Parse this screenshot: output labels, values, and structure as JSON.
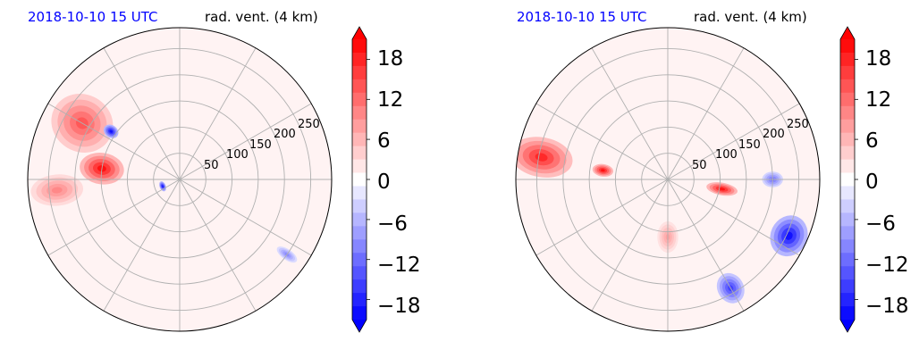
{
  "chart_data": [
    {
      "type": "heatmap",
      "projection": "polar",
      "title_left": "2018-10-10 15 UTC",
      "title_right": "rad. vent. (4 km)",
      "title_left_color": "#0000ff",
      "radial_ticks": [
        "50",
        "100",
        "150",
        "200",
        "250"
      ],
      "radial_values": [
        50,
        100,
        150,
        200,
        250
      ],
      "rmax": 290,
      "grid": true,
      "colorbar": {
        "ticks": [
          "18",
          "12",
          "6",
          "0",
          "−6",
          "−12",
          "−18"
        ],
        "tick_values": [
          18,
          12,
          6,
          0,
          -6,
          -12,
          -18
        ],
        "vmin": -21,
        "vmax": 21,
        "extend": "both",
        "cmap": "bwr",
        "levels": 21
      },
      "features": [
        {
          "sign": 1,
          "value": 20,
          "az": 278,
          "r": 150,
          "width": 30,
          "extent": 85
        },
        {
          "sign": 1,
          "value": 14,
          "az": 300,
          "r": 215,
          "width": 55,
          "extent": 120
        },
        {
          "sign": 1,
          "value": 10,
          "az": 265,
          "r": 235,
          "width": 30,
          "extent": 100
        },
        {
          "sign": -1,
          "value": 20,
          "az": 305,
          "r": 160,
          "width": 12,
          "extent": 30
        },
        {
          "sign": -1,
          "value": 20,
          "az": 248,
          "r": 35,
          "width": 10,
          "extent": 12
        },
        {
          "sign": -1,
          "value": 10,
          "az": 125,
          "r": 250,
          "width": 10,
          "extent": 45
        }
      ]
    },
    {
      "type": "heatmap",
      "projection": "polar",
      "title_left": "2018-10-10 15 UTC",
      "title_right": "rad. vent. (4 km)",
      "title_left_color": "#0000ff",
      "radial_ticks": [
        "50",
        "100",
        "150",
        "200",
        "250"
      ],
      "radial_values": [
        50,
        100,
        150,
        200,
        250
      ],
      "rmax": 290,
      "grid": true,
      "colorbar": {
        "ticks": [
          "18",
          "12",
          "6",
          "0",
          "−6",
          "−12",
          "−18"
        ],
        "tick_values": [
          18,
          12,
          6,
          0,
          -6,
          -12,
          -18
        ],
        "vmin": -21,
        "vmax": 21,
        "extend": "both",
        "cmap": "bwr",
        "levels": 21
      },
      "features": [
        {
          "sign": 1,
          "value": 18,
          "az": 280,
          "r": 245,
          "width": 38,
          "extent": 120
        },
        {
          "sign": 1,
          "value": 20,
          "az": 278,
          "r": 125,
          "width": 12,
          "extent": 40
        },
        {
          "sign": 1,
          "value": 20,
          "az": 100,
          "r": 105,
          "width": 12,
          "extent": 60
        },
        {
          "sign": 1,
          "value": 8,
          "az": 180,
          "r": 110,
          "width": 20,
          "extent": 60
        },
        {
          "sign": -1,
          "value": 20,
          "az": 115,
          "r": 255,
          "width": 40,
          "extent": 70
        },
        {
          "sign": -1,
          "value": 16,
          "az": 150,
          "r": 240,
          "width": 25,
          "extent": 60
        },
        {
          "sign": -1,
          "value": 12,
          "az": 90,
          "r": 200,
          "width": 15,
          "extent": 40
        }
      ]
    }
  ]
}
